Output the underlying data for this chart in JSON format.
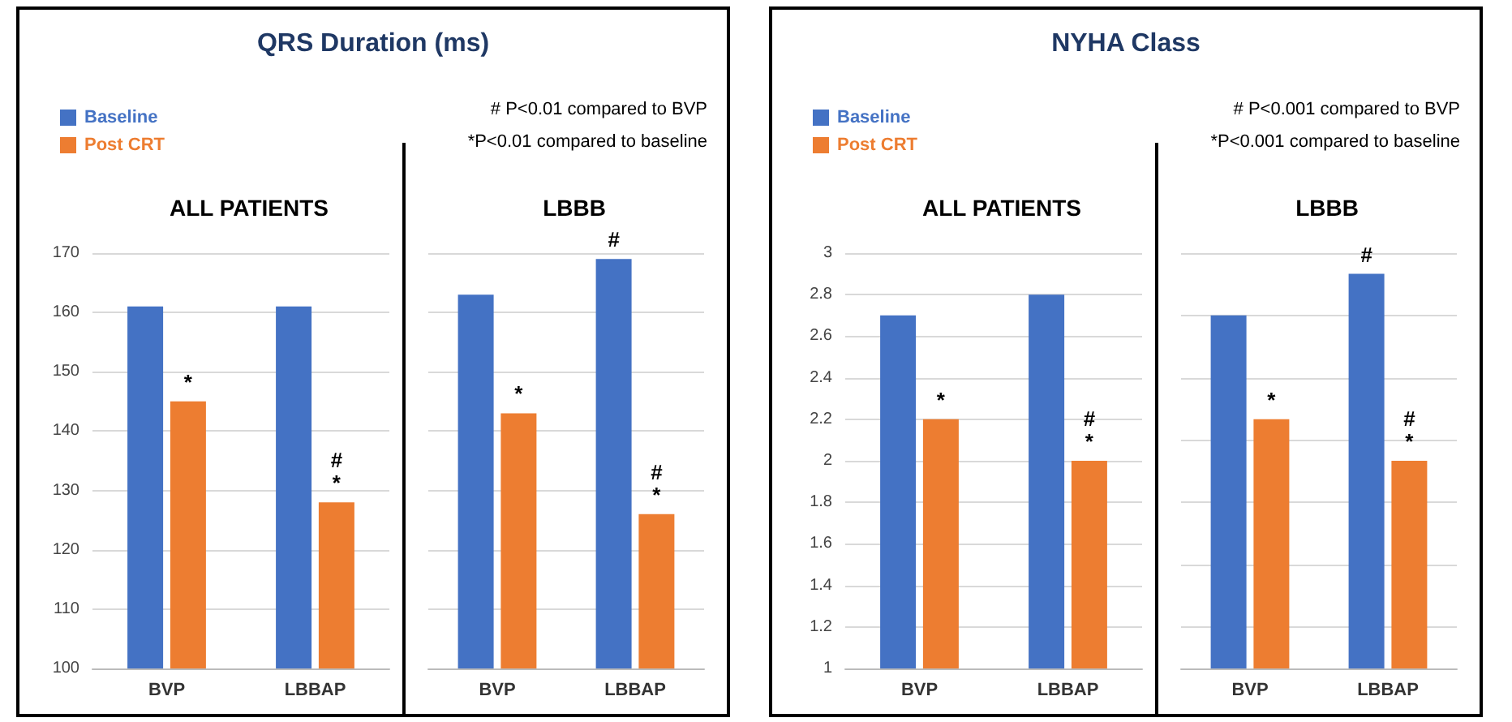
{
  "chart_data": [
    {
      "type": "bar",
      "title": "QRS Duration (ms)",
      "subtitle": "ALL PATIENTS",
      "categories": [
        "BVP",
        "LBBAP"
      ],
      "series": [
        {
          "name": "Baseline",
          "color": "#4472c4",
          "values": [
            161,
            161
          ]
        },
        {
          "name": "Post CRT",
          "color": "#ed7d31",
          "values": [
            145,
            128
          ],
          "value_labels": [
            "*",
            "#\n*"
          ]
        }
      ],
      "annotations": [
        "# P<0.01 compared to BVP",
        "*P<0.01 compared to baseline"
      ],
      "ylim": [
        100,
        170
      ],
      "yticks": [
        100,
        110,
        120,
        130,
        140,
        150,
        160,
        170
      ],
      "grid": "y",
      "legend": "top left"
    },
    {
      "type": "bar",
      "subtitle": "LBBB",
      "categories": [
        "BVP",
        "LBBAP"
      ],
      "series": [
        {
          "color": "#4472c4",
          "values": [
            163,
            169
          ],
          "value_labels": [
            null,
            "#"
          ]
        },
        {
          "color": "#ed7d31",
          "values": [
            143,
            126
          ],
          "value_labels": [
            "*",
            "#\n*"
          ]
        }
      ],
      "ylim": [
        100,
        170
      ],
      "grid": "y",
      "tick_labels": "x"
    },
    {
      "type": "bar",
      "title": "NYHA Class",
      "subtitle": "ALL PATIENTS",
      "categories": [
        "BVP",
        "LBBAP"
      ],
      "series": [
        {
          "name": "Baseline",
          "color": "#4472c4",
          "values": [
            2.7,
            2.8
          ]
        },
        {
          "name": "Post CRT",
          "color": "#ed7d31",
          "values": [
            2.2,
            2.0
          ],
          "value_labels": [
            "*",
            "#\n*"
          ]
        }
      ],
      "annotations": [
        "# P<0.001 compared to BVP",
        "*P<0.001 compared to baseline"
      ],
      "ylim": [
        1,
        3
      ],
      "yticks": [
        1,
        1.2,
        1.4,
        1.6,
        1.8,
        2,
        2.2,
        2.4,
        2.6,
        2.8,
        3
      ],
      "grid": "y",
      "legend": "top left"
    },
    {
      "type": "bar",
      "subtitle": "LBBB",
      "categories": [
        "BVP",
        "LBBAP"
      ],
      "series": [
        {
          "color": "#4472c4",
          "values": [
            2.7,
            2.9
          ],
          "value_labels": [
            null,
            "#"
          ]
        },
        {
          "color": "#ed7d31",
          "values": [
            2.2,
            2.0
          ],
          "value_labels": [
            "*",
            "#\n*"
          ]
        }
      ],
      "ylim": [
        1,
        3
      ],
      "grid": "y",
      "tick_labels": "x"
    }
  ]
}
